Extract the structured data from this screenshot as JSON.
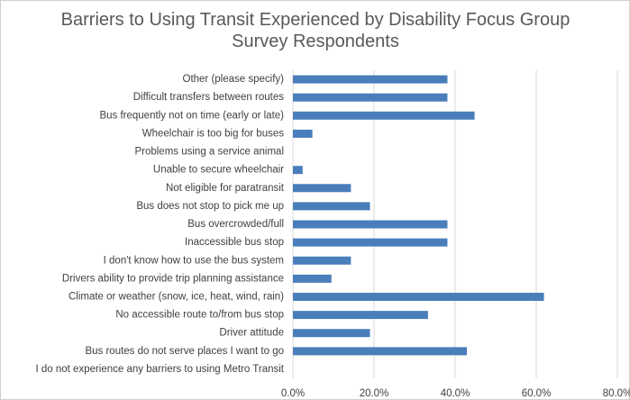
{
  "chart_data": {
    "type": "hbar",
    "title": "Barriers to Using Transit Experienced by Disability Focus Group Survey Respondents",
    "categories": [
      "Other (please specify)",
      "Difficult transfers between routes",
      "Bus frequently not on time (early or late)",
      "Wheelchair is too big for buses",
      "Problems using a service animal",
      "Unable to secure wheelchair",
      "Not eligible for paratransit",
      "Bus does not stop to pick me up",
      "Bus overcrowded/full",
      "Inaccessible bus stop",
      "I don't know how to use the bus system",
      "Drivers ability to provide trip planning assistance",
      "Climate or weather (snow, ice, heat, wind, rain)",
      "No accessible route to/from bus stop",
      "Driver attitude",
      "Bus routes do not serve places I want to go",
      "I do not experience any barriers to using Metro Transit"
    ],
    "values": [
      38.1,
      38.1,
      44.8,
      4.8,
      0,
      2.4,
      14.3,
      19.0,
      38.1,
      38.1,
      14.3,
      9.5,
      61.9,
      33.3,
      19.0,
      42.9,
      0
    ],
    "color": "#4a7ebb",
    "xlim": [
      0,
      80
    ],
    "xticks": [
      {
        "value": 0,
        "label": "0.0%"
      },
      {
        "value": 20,
        "label": "20.0%"
      },
      {
        "value": 40,
        "label": "40.0%"
      },
      {
        "value": 60,
        "label": "60.0%"
      },
      {
        "value": 80,
        "label": "80.0%"
      }
    ],
    "grid": true
  }
}
